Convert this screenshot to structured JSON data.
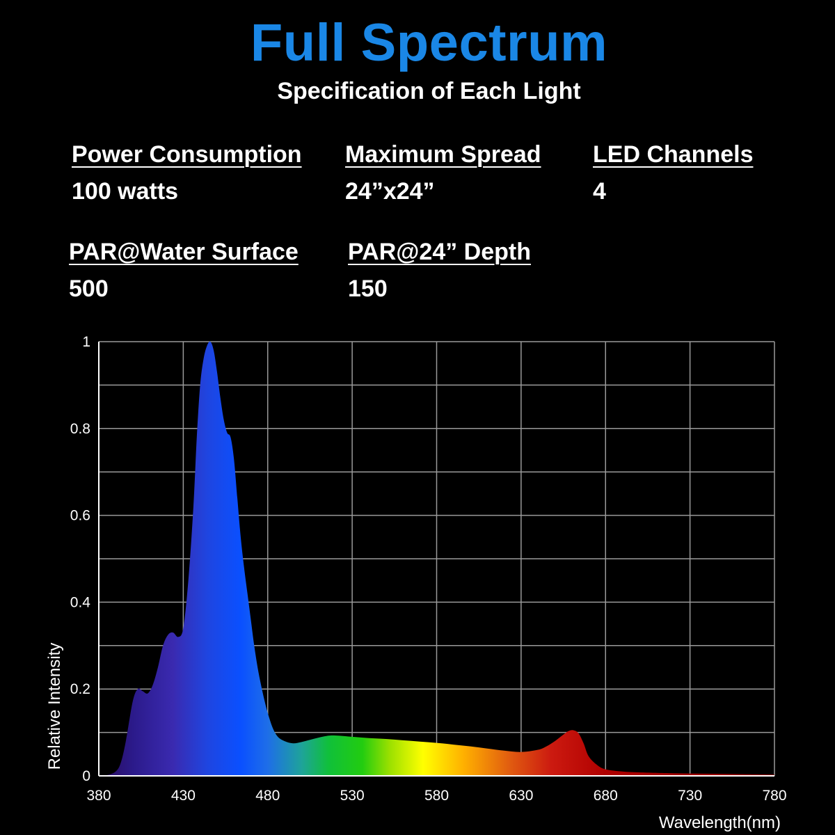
{
  "header": {
    "title": "Full Spectrum",
    "subtitle": "Specification of Each Light"
  },
  "specs": [
    {
      "label": "Power Consumption",
      "value": "100 watts"
    },
    {
      "label": "Maximum Spread",
      "value": "24”x24”"
    },
    {
      "label": "LED Channels",
      "value": "4"
    },
    {
      "label": "PAR@Water Surface",
      "value": "500"
    },
    {
      "label": "PAR@24” Depth",
      "value": "150"
    }
  ],
  "colors": {
    "title": "#1a87e6",
    "background": "#000000",
    "grid": "#9a9a9a",
    "text": "#ffffff"
  },
  "chart_data": {
    "type": "area",
    "xlabel": "Wavelength(nm)",
    "ylabel": "Relative Intensity",
    "xlim": [
      380,
      780
    ],
    "ylim": [
      0,
      1
    ],
    "x_ticks": [
      380,
      430,
      480,
      530,
      580,
      630,
      680,
      730,
      780
    ],
    "y_ticks": [
      0,
      0.2,
      0.4,
      0.6,
      0.8,
      1
    ],
    "y_tick_labels": [
      "0",
      "0.2",
      "0.4",
      "0.6",
      "0.8",
      "1"
    ],
    "grid": true,
    "fill": "wavelength color gradient",
    "x": [
      380,
      385,
      390,
      393,
      396,
      400,
      403,
      406,
      409,
      412,
      415,
      418,
      421,
      424,
      427,
      430,
      433,
      436,
      438,
      440,
      442,
      444,
      446,
      448,
      450,
      452,
      454,
      456,
      458,
      460,
      462,
      464,
      466,
      468,
      470,
      472,
      474,
      476,
      478,
      480,
      483,
      486,
      490,
      495,
      500,
      505,
      510,
      515,
      520,
      530,
      540,
      550,
      560,
      570,
      580,
      590,
      600,
      610,
      620,
      630,
      640,
      645,
      650,
      655,
      658,
      661,
      664,
      667,
      670,
      675,
      680,
      690,
      700,
      720,
      740,
      760,
      780
    ],
    "y": [
      0.0,
      0.002,
      0.01,
      0.03,
      0.08,
      0.17,
      0.2,
      0.195,
      0.19,
      0.21,
      0.25,
      0.3,
      0.325,
      0.33,
      0.32,
      0.34,
      0.45,
      0.62,
      0.78,
      0.9,
      0.96,
      0.99,
      1.0,
      0.98,
      0.93,
      0.87,
      0.82,
      0.79,
      0.78,
      0.73,
      0.64,
      0.55,
      0.48,
      0.42,
      0.36,
      0.3,
      0.25,
      0.21,
      0.175,
      0.145,
      0.11,
      0.09,
      0.08,
      0.075,
      0.078,
      0.083,
      0.088,
      0.092,
      0.093,
      0.09,
      0.087,
      0.085,
      0.082,
      0.079,
      0.076,
      0.072,
      0.068,
      0.063,
      0.058,
      0.055,
      0.06,
      0.068,
      0.08,
      0.095,
      0.103,
      0.105,
      0.098,
      0.075,
      0.045,
      0.025,
      0.015,
      0.01,
      0.008,
      0.006,
      0.005,
      0.004,
      0.003
    ]
  }
}
